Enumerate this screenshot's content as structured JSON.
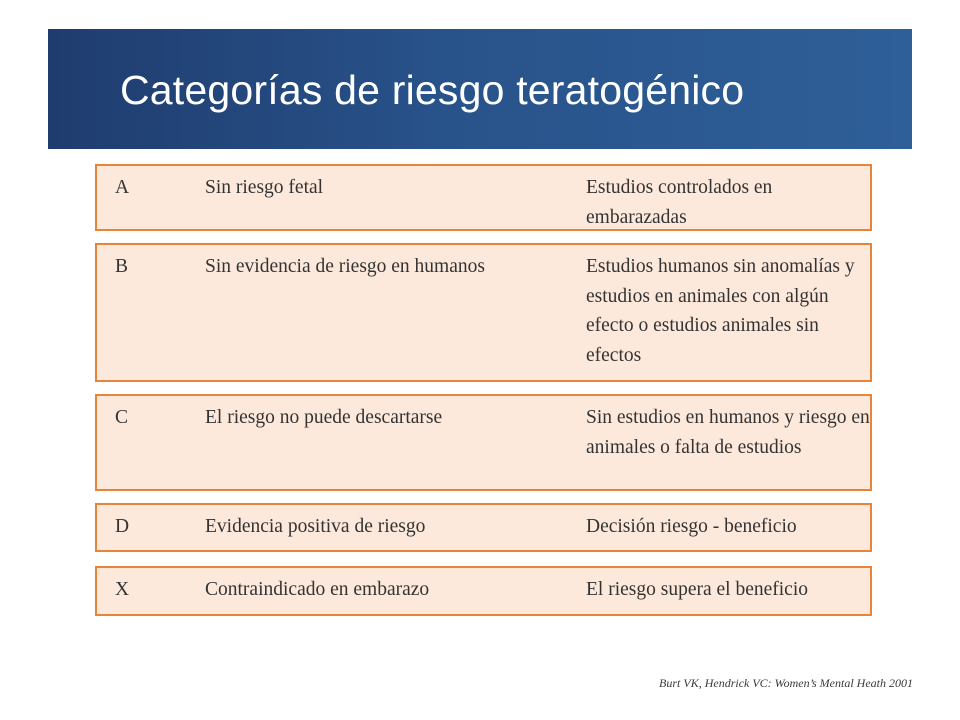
{
  "slide": {
    "title": "Categorías de riesgo teratogénico",
    "source": "Burt VK, Hendrick VC: Women’s Mental Heath 2001"
  },
  "categories": [
    {
      "letter": "A",
      "risk": "Sin riesgo fetal",
      "description": "Estudios controlados en embarazadas"
    },
    {
      "letter": "B",
      "risk": "Sin evidencia de riesgo en humanos",
      "description": "Estudios humanos sin anomalías y estudios en animales con algún efecto o estudios animales sin efectos"
    },
    {
      "letter": "C",
      "risk": "El riesgo no puede descartarse",
      "description": "Sin estudios en humanos y riesgo en animales o falta de estudios"
    },
    {
      "letter": "D",
      "risk": "Evidencia positiva de riesgo",
      "description": "Decisión riesgo - beneficio"
    },
    {
      "letter": "X",
      "risk": "Contraindicado en embarazo",
      "description": "El riesgo supera el beneficio"
    }
  ],
  "colors": {
    "title_bg": "#28528a",
    "row_bg": "#fde9dc",
    "row_border": "#e8843a"
  }
}
